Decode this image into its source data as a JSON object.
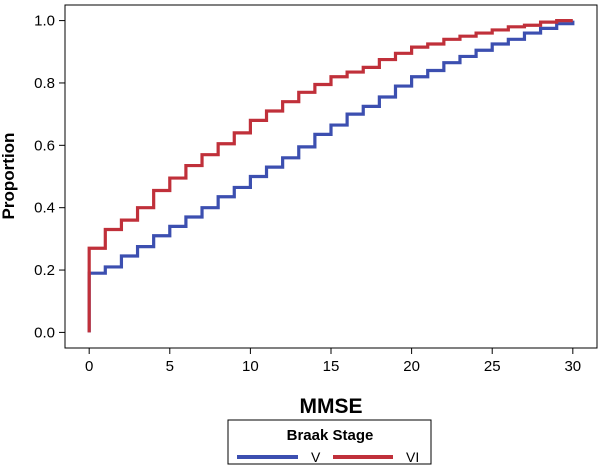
{
  "chart_data": {
    "type": "line",
    "step": true,
    "xlabel": "MMSE",
    "ylabel": "Proportion",
    "xlim": [
      -1.5,
      31.5
    ],
    "ylim": [
      -0.05,
      1.05
    ],
    "xticks": [
      0,
      5,
      10,
      15,
      20,
      25,
      30
    ],
    "yticks": [
      0.0,
      0.2,
      0.4,
      0.6,
      0.8,
      1.0
    ],
    "xtick_labels": [
      "0",
      "5",
      "10",
      "15",
      "20",
      "25",
      "30"
    ],
    "ytick_labels": [
      "0.0",
      "0.2",
      "0.4",
      "0.6",
      "0.8",
      "1.0"
    ],
    "grid": false,
    "legend": {
      "title": "Braak Stage",
      "position": "bottom-center"
    },
    "x": [
      0,
      1,
      2,
      3,
      4,
      5,
      6,
      7,
      8,
      9,
      10,
      11,
      12,
      13,
      14,
      15,
      16,
      17,
      18,
      19,
      20,
      21,
      22,
      23,
      24,
      25,
      26,
      27,
      28,
      29,
      30
    ],
    "series": [
      {
        "name": "V",
        "color": "#3c4fb0",
        "start": 0.0,
        "values": [
          0.19,
          0.21,
          0.245,
          0.275,
          0.31,
          0.34,
          0.37,
          0.4,
          0.435,
          0.465,
          0.5,
          0.53,
          0.56,
          0.595,
          0.635,
          0.665,
          0.7,
          0.725,
          0.755,
          0.79,
          0.82,
          0.84,
          0.865,
          0.885,
          0.905,
          0.925,
          0.94,
          0.96,
          0.975,
          0.99,
          1.0
        ]
      },
      {
        "name": "VI",
        "color": "#c0303a",
        "start": 0.0,
        "values": [
          0.27,
          0.33,
          0.36,
          0.4,
          0.455,
          0.495,
          0.535,
          0.57,
          0.605,
          0.64,
          0.68,
          0.71,
          0.74,
          0.77,
          0.795,
          0.82,
          0.835,
          0.85,
          0.875,
          0.895,
          0.915,
          0.925,
          0.94,
          0.95,
          0.96,
          0.97,
          0.98,
          0.985,
          0.995,
          1.0,
          1.0
        ]
      }
    ]
  }
}
